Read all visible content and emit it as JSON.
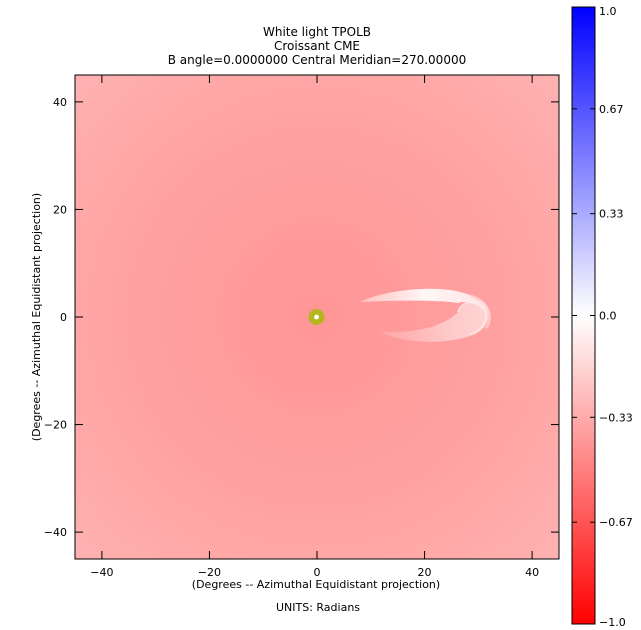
{
  "chart_data": {
    "type": "heatmap",
    "title_lines": [
      "White light TPOLB",
      "Croissant CME",
      "B angle=0.0000000 Central Meridian=270.00000"
    ],
    "xlabel": "(Degrees -- Azimuthal Equidistant projection)",
    "ylabel": "(Degrees -- Azimuthal Equidistant projection)",
    "units_label": "UNITS: Radians",
    "xlim": [
      -45,
      45
    ],
    "ylim": [
      -45,
      45
    ],
    "x_ticks": [
      -40,
      -20,
      0,
      20,
      40
    ],
    "y_ticks": [
      -40,
      -20,
      0,
      20,
      40
    ],
    "x_tick_labels": [
      "−40",
      "−20",
      "0",
      "20",
      "40"
    ],
    "y_tick_labels": [
      "−40",
      "−20",
      "0",
      "20",
      "40"
    ],
    "colorbar": {
      "range": [
        -1.0,
        1.0
      ],
      "ticks": [
        1.0,
        0.67,
        0.33,
        0.0,
        -0.33,
        -0.67,
        -1.0
      ],
      "tick_labels": [
        "1.0",
        "0.67",
        "0.33",
        "0.0",
        "−0.33",
        "−0.67",
        "−1.0"
      ],
      "color_max": "#0000ff",
      "color_mid": "#ffffff",
      "color_min": "#ff0000"
    },
    "field": {
      "background_value": -0.35,
      "background_color": "#ff9c9c",
      "sun_center": [
        0,
        0
      ],
      "sun_color": "#b5b51e",
      "cme_x_range": [
        8,
        32
      ],
      "cme_y_range": [
        -5,
        6
      ],
      "cme_upper_lobe_color": "#fff4f4",
      "cme_lower_lobe_color": "#ffc4c4"
    }
  }
}
